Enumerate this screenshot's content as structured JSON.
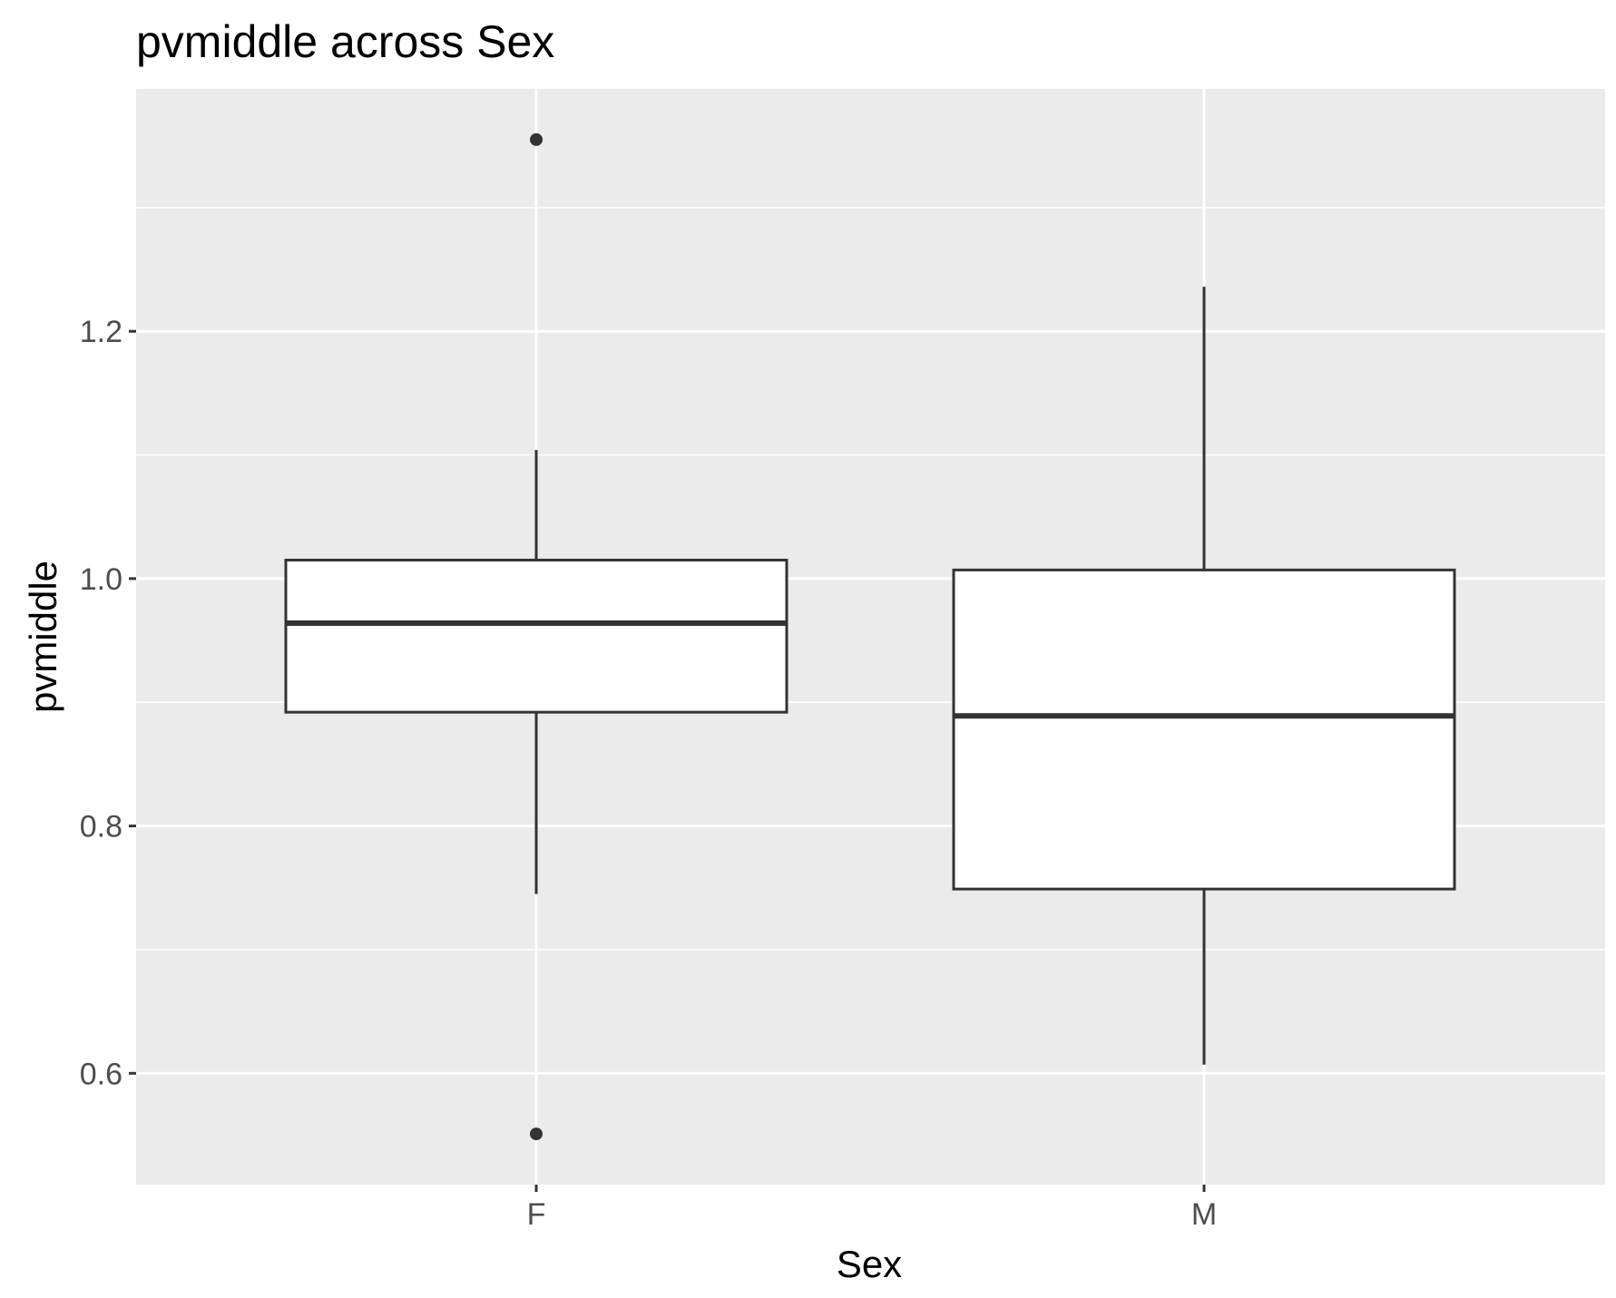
{
  "chart_data": {
    "type": "boxplot",
    "title": "pvmiddle across Sex",
    "xlabel": "Sex",
    "ylabel": "pvmiddle",
    "categories": [
      "F",
      "M"
    ],
    "ylim": [
      0.51,
      1.396
    ],
    "yticks": [
      {
        "value": 0.6,
        "label": "0.6"
      },
      {
        "value": 0.8,
        "label": "0.8"
      },
      {
        "value": 1.0,
        "label": "1.0"
      },
      {
        "value": 1.2,
        "label": "1.2"
      }
    ],
    "yminor": [
      0.7,
      0.9,
      1.1,
      1.3
    ],
    "grid": true,
    "boxes": [
      {
        "category": "F",
        "whisker_low": 0.745,
        "q1": 0.892,
        "median": 0.964,
        "q3": 1.015,
        "whisker_high": 1.104,
        "outliers": [
          1.355,
          0.551
        ]
      },
      {
        "category": "M",
        "whisker_low": 0.607,
        "q1": 0.749,
        "median": 0.889,
        "q3": 1.007,
        "whisker_high": 1.236,
        "outliers": []
      }
    ],
    "colors": {
      "panel": "#ebebeb",
      "grid": "#ffffff",
      "box_fill": "#ffffff",
      "box_line": "#333333",
      "outlier": "#333333",
      "tick": "#333333"
    }
  }
}
